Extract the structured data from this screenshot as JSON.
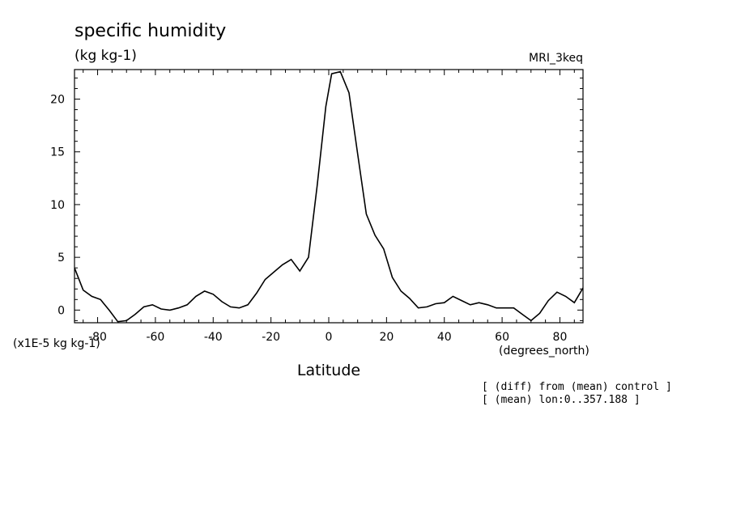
{
  "chart_data": {
    "type": "line",
    "title": "specific humidity",
    "units": "(kg kg-1)",
    "model": "MRI_3keq",
    "xlabel": "Latitude",
    "x_units": "(degrees_north)",
    "y_scale_label": "(x1E-5 kg kg-1)",
    "notes": [
      "[ (diff) from (mean) control ]",
      "[ (mean) lon:0..357.188 ]"
    ],
    "xlim": [
      -88,
      88
    ],
    "ylim": [
      -1.2,
      22.8
    ],
    "xticks": [
      -80,
      -60,
      -40,
      -20,
      0,
      20,
      40,
      60,
      80
    ],
    "yticks": [
      0,
      5,
      10,
      15,
      20
    ],
    "grid": false,
    "series": [
      {
        "x": [
          -88,
          -85,
          -82,
          -79,
          -76,
          -73,
          -70,
          -67,
          -64,
          -61,
          -58,
          -55,
          -52,
          -49,
          -46,
          -43,
          -40,
          -37,
          -34,
          -31,
          -28,
          -25,
          -22,
          -19,
          -16,
          -13,
          -10,
          -7,
          -4,
          -1,
          1,
          4,
          7,
          10,
          13,
          16,
          19,
          22,
          25,
          28,
          31,
          34,
          37,
          40,
          43,
          46,
          49,
          52,
          55,
          58,
          61,
          64,
          67,
          70,
          73,
          76,
          79,
          82,
          85,
          88
        ],
        "y": [
          4.0,
          1.9,
          1.3,
          1.0,
          0.0,
          -1.1,
          -1.0,
          -0.4,
          0.3,
          0.5,
          0.1,
          0.0,
          0.2,
          0.5,
          1.3,
          1.8,
          1.5,
          0.8,
          0.3,
          0.2,
          0.5,
          1.6,
          2.9,
          3.6,
          4.3,
          4.8,
          3.7,
          5.0,
          11.8,
          19.3,
          22.4,
          22.6,
          20.6,
          14.8,
          9.1,
          7.1,
          5.8,
          3.1,
          1.8,
          1.1,
          0.2,
          0.3,
          0.6,
          0.7,
          1.3,
          0.9,
          0.5,
          0.7,
          0.5,
          0.2,
          0.2,
          0.2,
          -0.4,
          -1.0,
          -0.3,
          0.9,
          1.7,
          1.3,
          0.7,
          2.1
        ]
      }
    ]
  }
}
